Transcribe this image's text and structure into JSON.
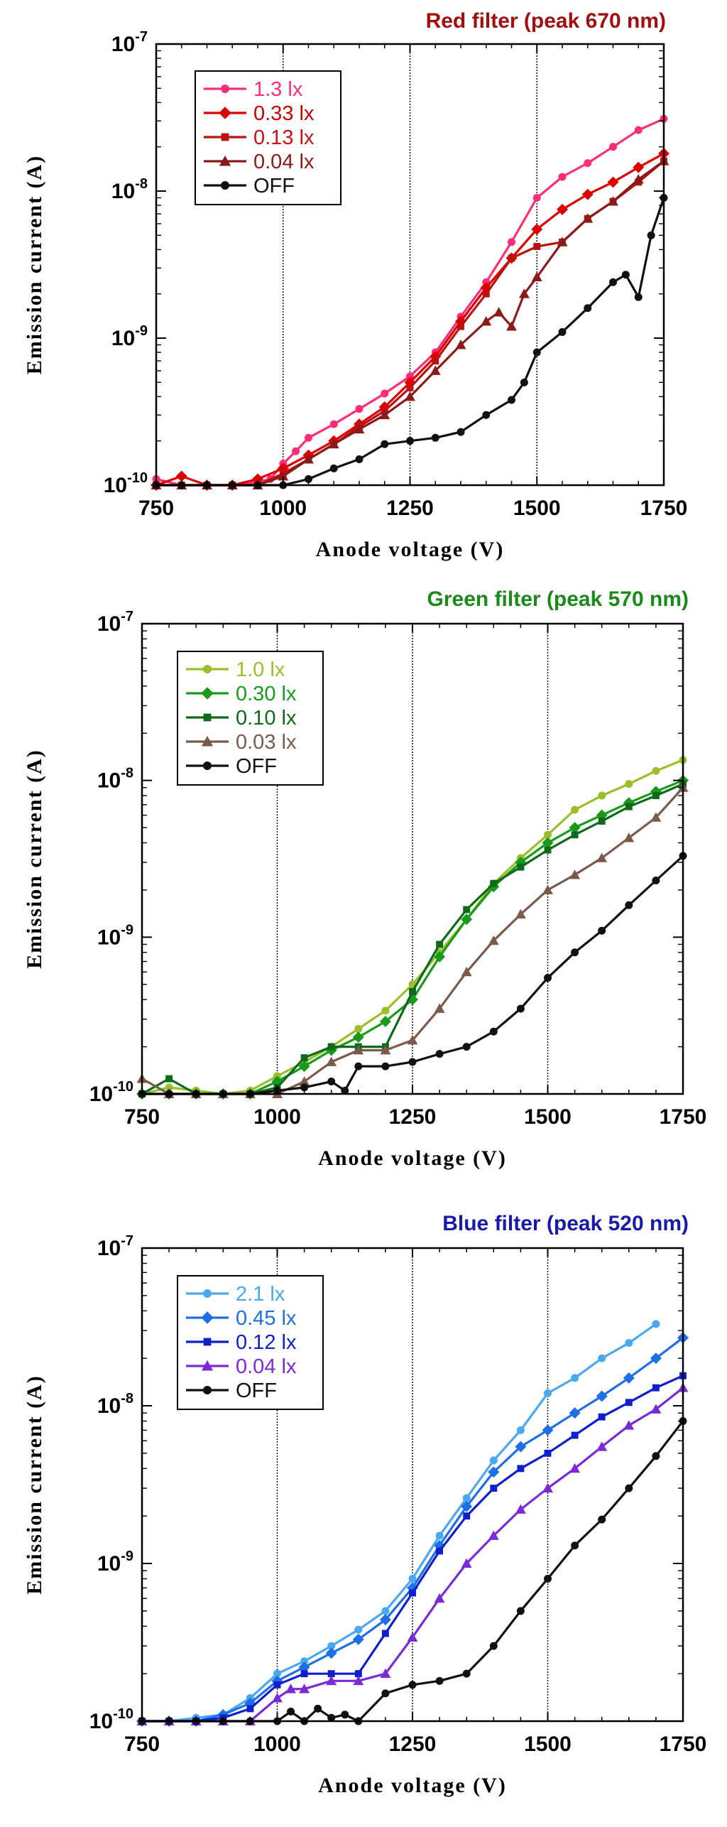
{
  "chart_data": [
    {
      "type": "line",
      "title": "Red filter (peak 670 nm)",
      "title_color": "#a01010",
      "xlabel": "Anode voltage (V)",
      "ylabel": "Emission current (A)",
      "x_scale": "linear",
      "y_scale": "log",
      "xlim": [
        750,
        1750
      ],
      "ylim": [
        1e-10,
        1e-07
      ],
      "x_ticks": [
        750,
        1000,
        1250,
        1500,
        1750
      ],
      "x_tick_labels": [
        "750",
        "1000",
        "1250",
        "1500",
        "1750"
      ],
      "y_tick_labels": [
        {
          "base": "10",
          "exp": "-10"
        },
        {
          "base": "10",
          "exp": "-9"
        },
        {
          "base": "10",
          "exp": "-8"
        },
        {
          "base": "10",
          "exp": "-7"
        }
      ],
      "reference_lines_x": [
        1000,
        1250,
        1500
      ],
      "legend_position": "top-left",
      "series": [
        {
          "name": "1.3 lx",
          "color": "#ff2d78",
          "marker": "circle",
          "label_color": "#ff2d78",
          "x": [
            750,
            800,
            850,
            900,
            950,
            975,
            1000,
            1025,
            1050,
            1100,
            1150,
            1200,
            1250,
            1300,
            1350,
            1400,
            1450,
            1500,
            1550,
            1600,
            1650,
            1700,
            1750
          ],
          "y": [
            1.1e-10,
            1e-10,
            1e-10,
            1e-10,
            1.05e-10,
            1.1e-10,
            1.4e-10,
            1.7e-10,
            2.1e-10,
            2.6e-10,
            3.3e-10,
            4.2e-10,
            5.5e-10,
            8e-10,
            1.4e-09,
            2.4e-09,
            4.5e-09,
            9e-09,
            1.25e-08,
            1.55e-08,
            2e-08,
            2.6e-08,
            3.1e-08
          ]
        },
        {
          "name": "0.33 lx",
          "color": "#dd0000",
          "marker": "diamond",
          "label_color": "#cc0000",
          "x": [
            750,
            800,
            850,
            900,
            950,
            1000,
            1050,
            1100,
            1150,
            1200,
            1250,
            1300,
            1350,
            1400,
            1450,
            1500,
            1550,
            1600,
            1650,
            1700,
            1750
          ],
          "y": [
            1e-10,
            1.15e-10,
            1e-10,
            1e-10,
            1.1e-10,
            1.3e-10,
            1.6e-10,
            2e-10,
            2.6e-10,
            3.4e-10,
            5e-10,
            7.5e-10,
            1.3e-09,
            2.2e-09,
            3.5e-09,
            5.5e-09,
            7.5e-09,
            9.5e-09,
            1.15e-08,
            1.45e-08,
            1.8e-08
          ]
        },
        {
          "name": "0.13 lx",
          "color": "#bb1111",
          "marker": "square",
          "label_color": "#cc1111",
          "x": [
            750,
            800,
            850,
            900,
            950,
            1000,
            1050,
            1100,
            1150,
            1200,
            1250,
            1300,
            1350,
            1400,
            1450,
            1500,
            1550,
            1600,
            1650,
            1700,
            1750
          ],
          "y": [
            1e-10,
            1e-10,
            1e-10,
            1e-10,
            1e-10,
            1.2e-10,
            1.5e-10,
            1.9e-10,
            2.5e-10,
            3.2e-10,
            4.6e-10,
            7e-10,
            1.2e-09,
            2e-09,
            3.5e-09,
            4.2e-09,
            4.5e-09,
            6.5e-09,
            8.5e-09,
            1.15e-08,
            1.6e-08
          ]
        },
        {
          "name": "0.04 lx",
          "color": "#8b1a1a",
          "marker": "triangle",
          "label_color": "#8b1a1a",
          "x": [
            750,
            800,
            850,
            900,
            950,
            1000,
            1050,
            1100,
            1150,
            1200,
            1250,
            1300,
            1350,
            1400,
            1425,
            1450,
            1475,
            1500,
            1550,
            1600,
            1650,
            1700,
            1750
          ],
          "y": [
            1e-10,
            1e-10,
            1e-10,
            1e-10,
            1e-10,
            1.15e-10,
            1.5e-10,
            1.9e-10,
            2.4e-10,
            3e-10,
            4e-10,
            6e-10,
            9e-10,
            1.3e-09,
            1.5e-09,
            1.2e-09,
            2e-09,
            2.6e-09,
            4.5e-09,
            6.5e-09,
            8.5e-09,
            1.2e-08,
            1.6e-08
          ]
        },
        {
          "name": "OFF",
          "color": "#111111",
          "marker": "circle",
          "label_color": "#111111",
          "x": [
            750,
            800,
            850,
            900,
            950,
            1000,
            1050,
            1100,
            1150,
            1200,
            1250,
            1300,
            1350,
            1400,
            1450,
            1475,
            1500,
            1550,
            1600,
            1650,
            1675,
            1700,
            1725,
            1750
          ],
          "y": [
            1e-10,
            1e-10,
            1e-10,
            1e-10,
            1e-10,
            1e-10,
            1.1e-10,
            1.3e-10,
            1.5e-10,
            1.9e-10,
            2e-10,
            2.1e-10,
            2.3e-10,
            3e-10,
            3.8e-10,
            5e-10,
            8e-10,
            1.1e-09,
            1.6e-09,
            2.4e-09,
            2.7e-09,
            1.9e-09,
            5e-09,
            9e-09
          ]
        }
      ]
    },
    {
      "type": "line",
      "title": "Green filter (peak 570 nm)",
      "title_color": "#1a8a1a",
      "xlabel": "Anode voltage (V)",
      "ylabel": "Emission current (A)",
      "x_scale": "linear",
      "y_scale": "log",
      "xlim": [
        750,
        1750
      ],
      "ylim": [
        1e-10,
        1e-07
      ],
      "x_ticks": [
        750,
        1000,
        1250,
        1500,
        1750
      ],
      "x_tick_labels": [
        "750",
        "1000",
        "1250",
        "1500",
        "1750"
      ],
      "y_tick_labels": [
        {
          "base": "10",
          "exp": "-10"
        },
        {
          "base": "10",
          "exp": "-9"
        },
        {
          "base": "10",
          "exp": "-8"
        },
        {
          "base": "10",
          "exp": "-7"
        }
      ],
      "reference_lines_x": [
        1000,
        1250,
        1500
      ],
      "legend_position": "top-left",
      "series": [
        {
          "name": "1.0  lx",
          "color": "#9bbf2a",
          "marker": "circle",
          "label_color": "#9bbf2a",
          "x": [
            750,
            800,
            850,
            900,
            950,
            1000,
            1050,
            1100,
            1150,
            1200,
            1250,
            1300,
            1350,
            1400,
            1450,
            1500,
            1550,
            1600,
            1650,
            1700,
            1750
          ],
          "y": [
            1e-10,
            1.1e-10,
            1.05e-10,
            1e-10,
            1.05e-10,
            1.3e-10,
            1.6e-10,
            2e-10,
            2.6e-10,
            3.4e-10,
            5e-10,
            8e-10,
            1.3e-09,
            2.2e-09,
            3.2e-09,
            4.5e-09,
            6.5e-09,
            8e-09,
            9.5e-09,
            1.15e-08,
            1.35e-08
          ]
        },
        {
          "name": "0.30  lx",
          "color": "#1a9a1a",
          "marker": "diamond",
          "label_color": "#1a9a1a",
          "x": [
            750,
            800,
            850,
            900,
            950,
            1000,
            1050,
            1100,
            1150,
            1200,
            1250,
            1300,
            1350,
            1400,
            1450,
            1500,
            1550,
            1600,
            1650,
            1700,
            1750
          ],
          "y": [
            1e-10,
            1e-10,
            1e-10,
            1e-10,
            1e-10,
            1.2e-10,
            1.5e-10,
            1.9e-10,
            2.3e-10,
            2.9e-10,
            4e-10,
            7.5e-10,
            1.3e-09,
            2.1e-09,
            3e-09,
            4e-09,
            5e-09,
            6e-09,
            7.2e-09,
            8.5e-09,
            1e-08
          ]
        },
        {
          "name": "0.10  lx",
          "color": "#0e6a1a",
          "marker": "square",
          "label_color": "#0e6a1a",
          "x": [
            750,
            800,
            850,
            900,
            950,
            1000,
            1050,
            1100,
            1150,
            1200,
            1250,
            1300,
            1350,
            1400,
            1450,
            1500,
            1550,
            1600,
            1650,
            1700,
            1750
          ],
          "y": [
            1e-10,
            1.25e-10,
            1e-10,
            1e-10,
            1e-10,
            1.1e-10,
            1.7e-10,
            2e-10,
            2e-10,
            2e-10,
            4.5e-10,
            9e-10,
            1.5e-09,
            2.2e-09,
            2.8e-09,
            3.6e-09,
            4.5e-09,
            5.5e-09,
            6.8e-09,
            8e-09,
            9.5e-09
          ]
        },
        {
          "name": "0.03  lx",
          "color": "#7a5a4a",
          "marker": "triangle",
          "label_color": "#7a5a4a",
          "x": [
            750,
            800,
            850,
            900,
            950,
            1000,
            1050,
            1100,
            1150,
            1200,
            1250,
            1300,
            1350,
            1400,
            1450,
            1500,
            1550,
            1600,
            1650,
            1700,
            1750
          ],
          "y": [
            1.25e-10,
            1e-10,
            1e-10,
            1e-10,
            1e-10,
            1e-10,
            1.2e-10,
            1.6e-10,
            1.9e-10,
            1.9e-10,
            2.2e-10,
            3.5e-10,
            6e-10,
            9.5e-10,
            1.4e-09,
            2e-09,
            2.5e-09,
            3.2e-09,
            4.3e-09,
            5.8e-09,
            9e-09
          ]
        },
        {
          "name": "OFF",
          "color": "#111111",
          "marker": "circle",
          "label_color": "#111111",
          "x": [
            750,
            800,
            850,
            900,
            950,
            1000,
            1050,
            1100,
            1125,
            1150,
            1200,
            1250,
            1300,
            1350,
            1400,
            1450,
            1500,
            1550,
            1600,
            1650,
            1700,
            1750
          ],
          "y": [
            1e-10,
            1e-10,
            1e-10,
            1e-10,
            1e-10,
            1.05e-10,
            1.1e-10,
            1.2e-10,
            1.05e-10,
            1.5e-10,
            1.5e-10,
            1.6e-10,
            1.8e-10,
            2e-10,
            2.5e-10,
            3.5e-10,
            5.5e-10,
            8e-10,
            1.1e-09,
            1.6e-09,
            2.3e-09,
            3.3e-09
          ]
        }
      ]
    },
    {
      "type": "line",
      "title": "Blue filter (peak 520 nm)",
      "title_color": "#1a1aaa",
      "xlabel": "Anode voltage (V)",
      "ylabel": "Emission current (A)",
      "x_scale": "linear",
      "y_scale": "log",
      "xlim": [
        750,
        1750
      ],
      "ylim": [
        1e-10,
        1e-07
      ],
      "x_ticks": [
        750,
        1000,
        1250,
        1500,
        1750
      ],
      "x_tick_labels": [
        "750",
        "1000",
        "1250",
        "1500",
        "1750"
      ],
      "y_tick_labels": [
        {
          "base": "10",
          "exp": "-10"
        },
        {
          "base": "10",
          "exp": "-9"
        },
        {
          "base": "10",
          "exp": "-8"
        },
        {
          "base": "10",
          "exp": "-7"
        }
      ],
      "reference_lines_x": [
        1000,
        1250,
        1500
      ],
      "legend_position": "top-left",
      "series": [
        {
          "name": "2.1  lx",
          "color": "#4aa8f0",
          "marker": "circle",
          "label_color": "#4aa8f0",
          "x": [
            750,
            800,
            850,
            900,
            950,
            1000,
            1050,
            1100,
            1150,
            1200,
            1250,
            1300,
            1350,
            1400,
            1450,
            1500,
            1550,
            1600,
            1650,
            1700
          ],
          "y": [
            1e-10,
            1e-10,
            1.05e-10,
            1.1e-10,
            1.4e-10,
            2e-10,
            2.4e-10,
            3e-10,
            3.8e-10,
            5e-10,
            8e-10,
            1.5e-09,
            2.6e-09,
            4.5e-09,
            7e-09,
            1.2e-08,
            1.5e-08,
            2e-08,
            2.5e-08,
            3.3e-08
          ]
        },
        {
          "name": "0.45  lx",
          "color": "#1e6fe6",
          "marker": "diamond",
          "label_color": "#1e6fe6",
          "x": [
            750,
            800,
            850,
            900,
            950,
            1000,
            1050,
            1100,
            1150,
            1200,
            1250,
            1300,
            1350,
            1400,
            1450,
            1500,
            1550,
            1600,
            1650,
            1700,
            1750
          ],
          "y": [
            1e-10,
            1e-10,
            1e-10,
            1.1e-10,
            1.3e-10,
            1.8e-10,
            2.2e-10,
            2.7e-10,
            3.3e-10,
            4.4e-10,
            7e-10,
            1.3e-09,
            2.3e-09,
            3.8e-09,
            5.5e-09,
            7e-09,
            9e-09,
            1.15e-08,
            1.5e-08,
            2e-08,
            2.7e-08
          ]
        },
        {
          "name": "0.12  lx",
          "color": "#0f1fcc",
          "marker": "square",
          "label_color": "#0f1fcc",
          "x": [
            750,
            800,
            850,
            900,
            950,
            1000,
            1050,
            1100,
            1150,
            1200,
            1250,
            1300,
            1350,
            1400,
            1450,
            1500,
            1550,
            1600,
            1650,
            1700,
            1750
          ],
          "y": [
            1e-10,
            1e-10,
            1e-10,
            1.05e-10,
            1.2e-10,
            1.7e-10,
            2e-10,
            2e-10,
            2e-10,
            3.6e-10,
            6.5e-10,
            1.2e-09,
            2e-09,
            3e-09,
            4e-09,
            5e-09,
            6.5e-09,
            8.5e-09,
            1.05e-08,
            1.3e-08,
            1.55e-08
          ]
        },
        {
          "name": "0.04  lx",
          "color": "#7a2ad6",
          "marker": "triangle",
          "label_color": "#7a2ad6",
          "x": [
            750,
            800,
            850,
            900,
            950,
            1000,
            1025,
            1050,
            1100,
            1150,
            1200,
            1250,
            1300,
            1350,
            1400,
            1450,
            1500,
            1550,
            1600,
            1650,
            1700,
            1750
          ],
          "y": [
            1e-10,
            1e-10,
            1e-10,
            1e-10,
            1e-10,
            1.4e-10,
            1.6e-10,
            1.6e-10,
            1.8e-10,
            1.8e-10,
            2e-10,
            3.4e-10,
            6e-10,
            1e-09,
            1.5e-09,
            2.2e-09,
            3e-09,
            4e-09,
            5.5e-09,
            7.5e-09,
            9.5e-09,
            1.3e-08
          ]
        },
        {
          "name": "OFF",
          "color": "#111111",
          "marker": "circle",
          "label_color": "#111111",
          "x": [
            750,
            800,
            850,
            900,
            950,
            1000,
            1025,
            1050,
            1075,
            1100,
            1125,
            1150,
            1200,
            1250,
            1300,
            1350,
            1400,
            1450,
            1500,
            1550,
            1600,
            1650,
            1700,
            1750
          ],
          "y": [
            1e-10,
            1e-10,
            1e-10,
            1e-10,
            1e-10,
            1e-10,
            1.15e-10,
            1e-10,
            1.2e-10,
            1.05e-10,
            1.1e-10,
            1e-10,
            1.5e-10,
            1.7e-10,
            1.8e-10,
            2e-10,
            3e-10,
            5e-10,
            8e-10,
            1.3e-09,
            1.9e-09,
            3e-09,
            4.8e-09,
            8e-09
          ]
        }
      ]
    }
  ]
}
